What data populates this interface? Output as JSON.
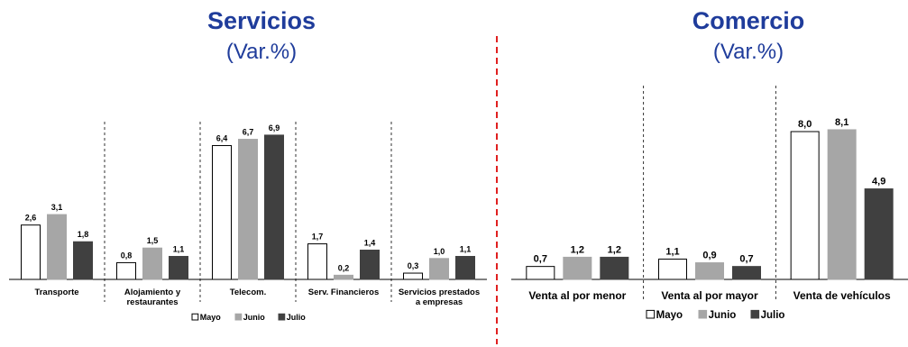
{
  "colors": {
    "title": "#1f3c9b",
    "mayo_fill": "#ffffff",
    "junio": "#a6a6a6",
    "julio": "#404040",
    "divider": "#e02020"
  },
  "chart_data": [
    {
      "type": "bar",
      "title": "Servicios",
      "subtitle": "(Var.%)",
      "categories": [
        "Transporte",
        "Alojamiento y restaurantes",
        "Telecom.",
        "Serv. Financieros",
        "Servicios prestados a empresas"
      ],
      "category_lines": [
        [
          "Transporte"
        ],
        [
          "Alojamiento y",
          "restaurantes"
        ],
        [
          "Telecom."
        ],
        [
          "Serv. Financieros"
        ],
        [
          "Servicios prestados",
          "a empresas"
        ]
      ],
      "series": [
        {
          "name": "Mayo",
          "values": [
            2.6,
            0.8,
            6.4,
            1.7,
            0.3
          ],
          "labels": [
            "2,6",
            "0,8",
            "6,4",
            "1,7",
            "0,3"
          ]
        },
        {
          "name": "Junio",
          "values": [
            3.1,
            1.5,
            6.7,
            0.2,
            1.0
          ],
          "labels": [
            "3,1",
            "1,5",
            "6,7",
            "0,2",
            "1,0"
          ]
        },
        {
          "name": "Julio",
          "values": [
            1.8,
            1.1,
            6.9,
            1.4,
            1.1
          ],
          "labels": [
            "1,8",
            "1,1",
            "6,9",
            "1,4",
            "1,1"
          ]
        }
      ],
      "ylim": [
        0,
        8
      ],
      "legend": "bottom-center",
      "grid": false
    },
    {
      "type": "bar",
      "title": "Comercio",
      "subtitle": "(Var.%)",
      "categories": [
        "Venta al por menor",
        "Venta al por mayor",
        "Venta de vehículos"
      ],
      "category_lines": [
        [
          "Venta al por menor"
        ],
        [
          "Venta al por mayor"
        ],
        [
          "Venta de vehículos"
        ]
      ],
      "series": [
        {
          "name": "Mayo",
          "values": [
            0.7,
            1.1,
            8.0
          ],
          "labels": [
            "0,7",
            "1,1",
            "8,0"
          ]
        },
        {
          "name": "Junio",
          "values": [
            1.2,
            0.9,
            8.1
          ],
          "labels": [
            "1,2",
            "0,9",
            "8,1"
          ]
        },
        {
          "name": "Julio",
          "values": [
            1.2,
            0.7,
            4.9
          ],
          "labels": [
            "1,2",
            "0,7",
            "4,9"
          ]
        }
      ],
      "ylim": [
        0,
        9
      ],
      "legend": "bottom-center",
      "grid": false
    }
  ]
}
